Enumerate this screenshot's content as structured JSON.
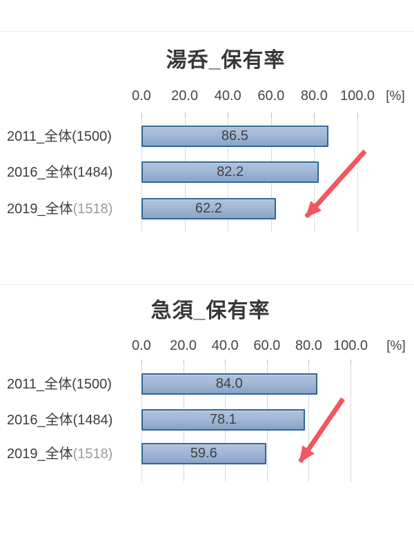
{
  "page": {
    "background": "#ffffff",
    "unit_label": "[%]"
  },
  "chart_data": [
    {
      "type": "bar",
      "orientation": "horizontal",
      "title": "湯呑_保有率",
      "categories": [
        "2011_全体(1500)",
        "2016_全体(1484)",
        "2019_全体(1518)"
      ],
      "categories_rich": [
        {
          "main": "2011_全体(1500)",
          "faded": ""
        },
        {
          "main": "2016_全体(1484)",
          "faded": ""
        },
        {
          "main": "2019_全体",
          "faded": "(1518)"
        }
      ],
      "values": [
        86.5,
        82.2,
        62.2
      ],
      "value_labels": [
        "86.5",
        "82.2",
        "62.2"
      ],
      "axis_ticks": [
        0,
        20,
        40,
        60,
        80,
        100
      ],
      "axis_tick_labels": [
        "0.0",
        "20.0",
        "40.0",
        "60.0",
        "80.0",
        "100.0"
      ],
      "xlabel_unit": "[%]",
      "xlim": [
        0,
        100
      ],
      "grid": true,
      "legend": false,
      "annotations": [
        {
          "type": "arrow",
          "direction": "down-left",
          "color": "#f0575f"
        }
      ]
    },
    {
      "type": "bar",
      "orientation": "horizontal",
      "title": "急須_保有率",
      "categories": [
        "2011_全体(1500)",
        "2016_全体(1484)",
        "2019_全体(1518)"
      ],
      "categories_rich": [
        {
          "main": "2011_全体(1500)",
          "faded": ""
        },
        {
          "main": "2016_全体(1484)",
          "faded": ""
        },
        {
          "main": "2019_全体",
          "faded": "(1518)"
        }
      ],
      "values": [
        84.0,
        78.1,
        59.6
      ],
      "value_labels": [
        "84.0",
        "78.1",
        "59.6"
      ],
      "axis_ticks": [
        0,
        20,
        40,
        60,
        80,
        100
      ],
      "axis_tick_labels": [
        "0.0",
        "20.0",
        "40.0",
        "60.0",
        "80.0",
        "100.0"
      ],
      "xlabel_unit": "[%]",
      "xlim": [
        0,
        100
      ],
      "grid": true,
      "legend": false,
      "annotations": [
        {
          "type": "arrow",
          "direction": "down-left",
          "color": "#f0575f"
        }
      ]
    }
  ],
  "colors": {
    "bar_fill_top": "#b0c2dd",
    "bar_fill_bottom": "#8aa4c8",
    "bar_border": "#2f6597",
    "gridline": "#d8d8d8",
    "arrow": "#f0575f",
    "text": "#404040",
    "divider": "#ebebeb"
  }
}
